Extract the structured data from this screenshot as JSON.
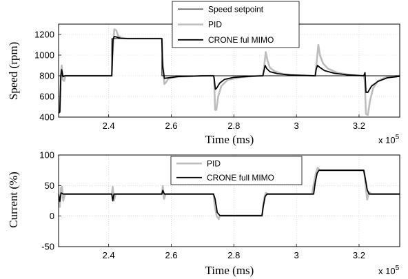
{
  "chart_data": [
    {
      "type": "line",
      "title": "",
      "xlabel": "Time (ms)",
      "ylabel": "Speed (rpm)",
      "x_multiplier_label": "x 10",
      "x_multiplier_exponent": "5",
      "xlim": [
        2.24,
        3.33
      ],
      "ylim": [
        400,
        1300
      ],
      "xticks": [
        "2.4",
        "2.6",
        "2.8",
        "3",
        "3.2"
      ],
      "yticks": [
        "400",
        "600",
        "800",
        "1000",
        "1200"
      ],
      "grid": true,
      "legend_position": "top-center",
      "series": [
        {
          "name": "Speed setpoint",
          "color": "#000000",
          "points": [
            [
              2.24,
              800
            ],
            [
              2.41,
              800
            ],
            [
              2.41,
              1160
            ],
            [
              2.57,
              1160
            ],
            [
              2.57,
              800
            ],
            [
              3.33,
              800
            ]
          ]
        },
        {
          "name": "PID",
          "color": "#bdbdbd",
          "points": [
            [
              2.24,
              440
            ],
            [
              2.244,
              450
            ],
            [
              2.247,
              820
            ],
            [
              2.25,
              900
            ],
            [
              2.253,
              760
            ],
            [
              2.258,
              750
            ],
            [
              2.262,
              800
            ],
            [
              2.41,
              800
            ],
            [
              2.412,
              1000
            ],
            [
              2.418,
              1250
            ],
            [
              2.424,
              1240
            ],
            [
              2.43,
              1190
            ],
            [
              2.44,
              1168
            ],
            [
              2.46,
              1160
            ],
            [
              2.57,
              1160
            ],
            [
              2.572,
              980
            ],
            [
              2.578,
              720
            ],
            [
              2.584,
              740
            ],
            [
              2.59,
              770
            ],
            [
              2.62,
              790
            ],
            [
              2.72,
              800
            ],
            [
              2.735,
              800
            ],
            [
              2.737,
              760
            ],
            [
              2.74,
              470
            ],
            [
              2.744,
              470
            ],
            [
              2.75,
              600
            ],
            [
              2.76,
              700
            ],
            [
              2.78,
              760
            ],
            [
              2.82,
              785
            ],
            [
              2.88,
              800
            ],
            [
              2.893,
              800
            ],
            [
              2.897,
              900
            ],
            [
              2.902,
              1030
            ],
            [
              2.908,
              940
            ],
            [
              2.915,
              880
            ],
            [
              2.93,
              845
            ],
            [
              2.96,
              815
            ],
            [
              3.0,
              805
            ],
            [
              3.05,
              800
            ],
            [
              3.06,
              800
            ],
            [
              3.065,
              950
            ],
            [
              3.07,
              1100
            ],
            [
              3.075,
              1000
            ],
            [
              3.085,
              920
            ],
            [
              3.1,
              870
            ],
            [
              3.13,
              830
            ],
            [
              3.18,
              805
            ],
            [
              3.215,
              800
            ],
            [
              3.218,
              760
            ],
            [
              3.222,
              430
            ],
            [
              3.228,
              420
            ],
            [
              3.235,
              560
            ],
            [
              3.245,
              680
            ],
            [
              3.26,
              750
            ],
            [
              3.29,
              790
            ],
            [
              3.33,
              800
            ]
          ]
        },
        {
          "name": "CRONE ful MIMO",
          "color": "#000000",
          "points": [
            [
              2.24,
              440
            ],
            [
              2.244,
              450
            ],
            [
              2.247,
              790
            ],
            [
              2.25,
              860
            ],
            [
              2.254,
              790
            ],
            [
              2.26,
              800
            ],
            [
              2.41,
              800
            ],
            [
              2.414,
              1150
            ],
            [
              2.418,
              1180
            ],
            [
              2.425,
              1175
            ],
            [
              2.44,
              1162
            ],
            [
              2.46,
              1160
            ],
            [
              2.57,
              1160
            ],
            [
              2.572,
              900
            ],
            [
              2.578,
              775
            ],
            [
              2.59,
              780
            ],
            [
              2.62,
              792
            ],
            [
              2.7,
              800
            ],
            [
              2.735,
              800
            ],
            [
              2.737,
              780
            ],
            [
              2.741,
              670
            ],
            [
              2.745,
              680
            ],
            [
              2.755,
              730
            ],
            [
              2.77,
              765
            ],
            [
              2.8,
              785
            ],
            [
              2.85,
              795
            ],
            [
              2.893,
              800
            ],
            [
              2.897,
              860
            ],
            [
              2.9,
              900
            ],
            [
              2.905,
              870
            ],
            [
              2.915,
              840
            ],
            [
              2.94,
              820
            ],
            [
              2.98,
              808
            ],
            [
              3.06,
              800
            ],
            [
              3.063,
              860
            ],
            [
              3.067,
              900
            ],
            [
              3.075,
              880
            ],
            [
              3.09,
              850
            ],
            [
              3.12,
              825
            ],
            [
              3.16,
              810
            ],
            [
              3.215,
              800
            ],
            [
              3.219,
              830
            ],
            [
              3.222,
              640
            ],
            [
              3.228,
              640
            ],
            [
              3.24,
              700
            ],
            [
              3.26,
              745
            ],
            [
              3.29,
              780
            ],
            [
              3.33,
              795
            ]
          ]
        }
      ]
    },
    {
      "type": "line",
      "title": "",
      "xlabel": "Time (ms)",
      "ylabel": "Current (%)",
      "x_multiplier_label": "x 10",
      "x_multiplier_exponent": "5",
      "xlim": [
        2.24,
        3.33
      ],
      "ylim": [
        -50,
        100
      ],
      "xticks": [
        "2.4",
        "2.6",
        "2.8",
        "3",
        "3.2"
      ],
      "yticks": [
        "-50",
        "0",
        "50",
        "100"
      ],
      "grid": true,
      "legend_position": "top-center",
      "series": [
        {
          "name": "PID",
          "color": "#bdbdbd",
          "points": [
            [
              2.24,
              35
            ],
            [
              2.244,
              15
            ],
            [
              2.247,
              46
            ],
            [
              2.251,
              48
            ],
            [
              2.255,
              25
            ],
            [
              2.26,
              36
            ],
            [
              2.41,
              36
            ],
            [
              2.413,
              48
            ],
            [
              2.417,
              25
            ],
            [
              2.422,
              36
            ],
            [
              2.57,
              36
            ],
            [
              2.573,
              49
            ],
            [
              2.577,
              28
            ],
            [
              2.582,
              36
            ],
            [
              2.735,
              36
            ],
            [
              2.738,
              20
            ],
            [
              2.745,
              0
            ],
            [
              2.752,
              -5
            ],
            [
              2.755,
              0
            ],
            [
              2.89,
              0
            ],
            [
              2.893,
              14
            ],
            [
              2.897,
              30
            ],
            [
              2.902,
              38
            ],
            [
              2.91,
              36
            ],
            [
              3.05,
              36
            ],
            [
              3.055,
              52
            ],
            [
              3.063,
              72
            ],
            [
              3.068,
              79
            ],
            [
              3.075,
              75
            ],
            [
              3.215,
              75
            ],
            [
              3.218,
              65
            ],
            [
              3.222,
              45
            ],
            [
              3.226,
              27
            ],
            [
              3.232,
              39
            ],
            [
              3.24,
              36
            ],
            [
              3.33,
              36
            ]
          ]
        },
        {
          "name": "CRONE full MIMO",
          "color": "#000000",
          "points": [
            [
              2.24,
              36
            ],
            [
              2.244,
              24
            ],
            [
              2.248,
              38
            ],
            [
              2.255,
              36
            ],
            [
              2.41,
              36
            ],
            [
              2.413,
              25
            ],
            [
              2.417,
              36
            ],
            [
              2.57,
              36
            ],
            [
              2.573,
              42
            ],
            [
              2.578,
              36
            ],
            [
              2.735,
              36
            ],
            [
              2.74,
              28
            ],
            [
              2.747,
              6
            ],
            [
              2.755,
              1
            ],
            [
              2.89,
              1
            ],
            [
              2.894,
              16
            ],
            [
              2.9,
              32
            ],
            [
              2.906,
              36
            ],
            [
              3.055,
              36
            ],
            [
              3.06,
              55
            ],
            [
              3.066,
              70
            ],
            [
              3.072,
              75
            ],
            [
              3.215,
              75
            ],
            [
              3.22,
              62
            ],
            [
              3.226,
              43
            ],
            [
              3.232,
              36
            ],
            [
              3.33,
              36
            ]
          ]
        }
      ]
    }
  ]
}
